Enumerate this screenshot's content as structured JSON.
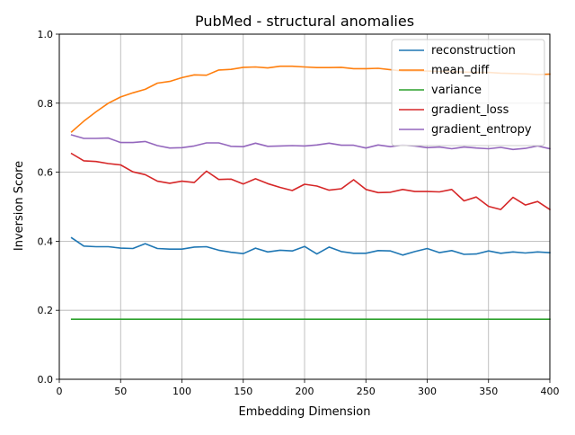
{
  "chart_data": {
    "type": "line",
    "title": "PubMed - structural anomalies",
    "xlabel": "Embedding Dimension",
    "ylabel": "Inversion Score",
    "xlim": [
      0,
      400
    ],
    "ylim": [
      0,
      1.0
    ],
    "xticks": [
      0,
      50,
      100,
      150,
      200,
      250,
      300,
      350,
      400
    ],
    "xtick_labels": [
      "0",
      "50",
      "100",
      "150",
      "200",
      "250",
      "300",
      "350",
      "400"
    ],
    "yticks": [
      0,
      0.2,
      0.4,
      0.6,
      0.8,
      1.0
    ],
    "ytick_labels": [
      "0.0",
      "0.2",
      "0.4",
      "0.6",
      "0.8",
      "1.0"
    ],
    "grid": true,
    "legend_position": "top-right",
    "x": [
      10,
      20,
      30,
      40,
      50,
      60,
      70,
      80,
      90,
      100,
      110,
      120,
      130,
      140,
      150,
      160,
      170,
      180,
      190,
      200,
      210,
      220,
      230,
      240,
      250,
      260,
      270,
      280,
      290,
      300,
      310,
      320,
      330,
      340,
      350,
      360,
      370,
      380,
      390,
      400
    ],
    "series": [
      {
        "name": "reconstruction",
        "color": "#1f77b4",
        "values": [
          0.41,
          0.386,
          0.384,
          0.384,
          0.38,
          0.379,
          0.393,
          0.379,
          0.377,
          0.377,
          0.383,
          0.384,
          0.374,
          0.368,
          0.364,
          0.38,
          0.369,
          0.374,
          0.372,
          0.385,
          0.363,
          0.383,
          0.37,
          0.365,
          0.365,
          0.373,
          0.372,
          0.36,
          0.37,
          0.379,
          0.367,
          0.373,
          0.362,
          0.363,
          0.372,
          0.365,
          0.369,
          0.366,
          0.369,
          0.367
        ]
      },
      {
        "name": "mean_diff",
        "color": "#ff7f0e",
        "values": [
          0.717,
          0.748,
          0.775,
          0.8,
          0.818,
          0.83,
          0.84,
          0.858,
          0.863,
          0.874,
          0.882,
          0.881,
          0.896,
          0.898,
          0.904,
          0.905,
          0.902,
          0.907,
          0.907,
          0.905,
          0.903,
          0.903,
          0.904,
          0.9,
          0.9,
          0.901,
          0.897,
          0.893,
          0.893,
          0.893,
          0.892,
          0.892,
          0.89,
          0.889,
          0.889,
          0.887,
          0.886,
          0.885,
          0.883,
          0.884
        ]
      },
      {
        "name": "variance",
        "color": "#2ca02c",
        "values": [
          0.174,
          0.174,
          0.174,
          0.174,
          0.174,
          0.174,
          0.174,
          0.174,
          0.174,
          0.174,
          0.174,
          0.174,
          0.174,
          0.174,
          0.174,
          0.174,
          0.174,
          0.174,
          0.174,
          0.174,
          0.174,
          0.174,
          0.174,
          0.174,
          0.174,
          0.174,
          0.174,
          0.174,
          0.174,
          0.174,
          0.174,
          0.174,
          0.174,
          0.174,
          0.174,
          0.174,
          0.174,
          0.174,
          0.174,
          0.174
        ]
      },
      {
        "name": "gradient_loss",
        "color": "#d62728",
        "values": [
          0.654,
          0.633,
          0.631,
          0.625,
          0.621,
          0.601,
          0.593,
          0.574,
          0.568,
          0.574,
          0.57,
          0.603,
          0.579,
          0.58,
          0.566,
          0.581,
          0.567,
          0.556,
          0.547,
          0.565,
          0.56,
          0.548,
          0.552,
          0.578,
          0.55,
          0.541,
          0.542,
          0.55,
          0.544,
          0.544,
          0.543,
          0.55,
          0.517,
          0.528,
          0.501,
          0.492,
          0.527,
          0.505,
          0.515,
          0.492
        ]
      },
      {
        "name": "gradient_entropy",
        "color": "#9467bd",
        "values": [
          0.708,
          0.698,
          0.698,
          0.699,
          0.686,
          0.686,
          0.689,
          0.677,
          0.67,
          0.671,
          0.676,
          0.685,
          0.685,
          0.675,
          0.674,
          0.684,
          0.675,
          0.676,
          0.677,
          0.676,
          0.679,
          0.684,
          0.678,
          0.678,
          0.67,
          0.679,
          0.674,
          0.679,
          0.676,
          0.671,
          0.673,
          0.668,
          0.673,
          0.67,
          0.668,
          0.672,
          0.666,
          0.669,
          0.676,
          0.668
        ]
      }
    ]
  }
}
